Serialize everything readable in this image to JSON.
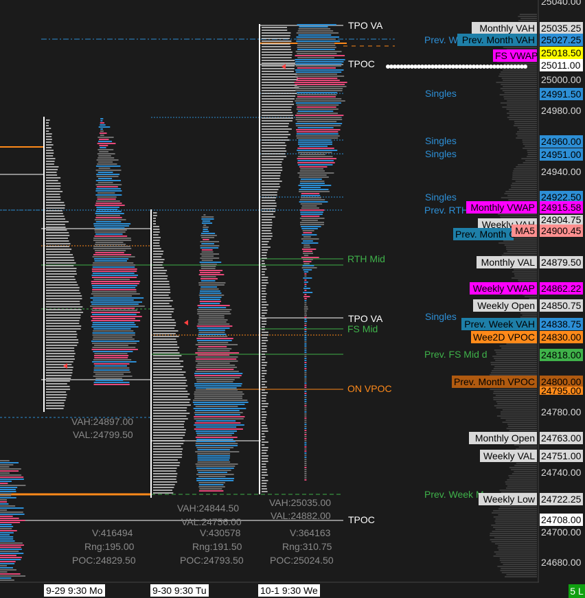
{
  "colors": {
    "bg": "#1b1b1b",
    "axis_bg": "#1b1b1b",
    "grid_line": "#e0e0e0",
    "blue": "#2d8fd6",
    "pink": "#e8497a",
    "gray_profile": "#6e6e6e",
    "orange": "#ff8a1a",
    "green": "#3fb24a",
    "white": "#ffffff",
    "magenta": "#ff00ff",
    "yellow": "#ffff00",
    "salmon": "#ff8f8f",
    "brown": "#b05a10",
    "teal": "#1e7fa8"
  },
  "price_axis": {
    "ticks": [
      "25040.00",
      "25000.00",
      "24980.00",
      "24940.00",
      "24780.00",
      "24740.00",
      "24700.00",
      "24680.00"
    ],
    "boxes": [
      {
        "text": "25035.25",
        "bg": "#d9d9d9",
        "fg": "#000000"
      },
      {
        "text": "25027.25",
        "bg": "#2d8fd6",
        "fg": "#000000"
      },
      {
        "text": "25018.50",
        "bg": "#ffff00",
        "fg": "#000000"
      },
      {
        "text": "25011.00",
        "bg": "#ffffff",
        "fg": "#000000"
      },
      {
        "text": "24991.50",
        "bg": "#2d8fd6",
        "fg": "#000000"
      },
      {
        "text": "24960.00",
        "bg": "#2d8fd6",
        "fg": "#000000"
      },
      {
        "text": "24951.00",
        "bg": "#2d8fd6",
        "fg": "#000000"
      },
      {
        "text": "24922.50",
        "bg": "#2d8fd6",
        "fg": "#000000"
      },
      {
        "text": "24915.58",
        "bg": "#ff00ff",
        "fg": "#000000"
      },
      {
        "text": "24904.75",
        "bg": "#d9d9d9",
        "fg": "#000000"
      },
      {
        "text": "24900.45",
        "bg": "#ff8f8f",
        "fg": "#000000"
      },
      {
        "text": "24879.50",
        "bg": "#d9d9d9",
        "fg": "#000000"
      },
      {
        "text": "24862.22",
        "bg": "#ff00ff",
        "fg": "#000000"
      },
      {
        "text": "24850.75",
        "bg": "#d9d9d9",
        "fg": "#000000"
      },
      {
        "text": "24838.75",
        "bg": "#2d8fd6",
        "fg": "#000000"
      },
      {
        "text": "24830.00",
        "bg": "#ff8a1a",
        "fg": "#000000"
      },
      {
        "text": "24818.00",
        "bg": "#3fb24a",
        "fg": "#000000"
      },
      {
        "text": "24800.00",
        "bg": "#b05a10",
        "fg": "#000000"
      },
      {
        "text": "24795.00",
        "bg": "#ff8a1a",
        "fg": "#000000"
      },
      {
        "text": "24763.00",
        "bg": "#d9d9d9",
        "fg": "#000000"
      },
      {
        "text": "24751.00",
        "bg": "#d9d9d9",
        "fg": "#000000"
      },
      {
        "text": "24722.25",
        "bg": "#d9d9d9",
        "fg": "#000000"
      },
      {
        "text": "24708.00",
        "bg": "#ffffff",
        "fg": "#000000"
      }
    ]
  },
  "right_tags": [
    {
      "text": "Monthly VAH",
      "bg": "#d9d9d9",
      "fg": "#000000"
    },
    {
      "text": "Prev. Month VAH",
      "bg": "#1e7fa8",
      "fg": "#000000"
    },
    {
      "text": "FS VWAP",
      "bg": "#ff00ff",
      "fg": "#000000"
    },
    {
      "text": "Monthly VWAP",
      "bg": "#ff00ff",
      "fg": "#000000"
    },
    {
      "text": "Weekly VAH",
      "bg": "#d9d9d9",
      "fg": "#000000"
    },
    {
      "text": "Prev. Month C",
      "bg": "#1e7fa8",
      "fg": "#000000"
    },
    {
      "text": "MA5",
      "bg": "#ff8f8f",
      "fg": "#000000"
    },
    {
      "text": "Monthly VAL",
      "bg": "#d9d9d9",
      "fg": "#000000"
    },
    {
      "text": "Weekly VWAP",
      "bg": "#ff00ff",
      "fg": "#000000"
    },
    {
      "text": "Weekly Open",
      "bg": "#d9d9d9",
      "fg": "#000000"
    },
    {
      "text": "Prev. Week VAH",
      "bg": "#1e7fa8",
      "fg": "#000000"
    },
    {
      "text": "Wee2D VPOC",
      "bg": "#ff8a1a",
      "fg": "#000000"
    },
    {
      "text": "Prev. Month VPOC",
      "bg": "#b05a10",
      "fg": "#000000"
    },
    {
      "text": "Monthly Open",
      "bg": "#d9d9d9",
      "fg": "#000000"
    },
    {
      "text": "Weekly VAL",
      "bg": "#d9d9d9",
      "fg": "#000000"
    },
    {
      "text": "Weekly Low",
      "bg": "#d9d9d9",
      "fg": "#000000"
    }
  ],
  "plain_labels": [
    {
      "text": "Prev. W",
      "color": "#2d8fd6"
    },
    {
      "text": "Singles",
      "color": "#2d8fd6"
    },
    {
      "text": "Singles",
      "color": "#2d8fd6"
    },
    {
      "text": "Singles",
      "color": "#2d8fd6"
    },
    {
      "text": "Singles",
      "color": "#2d8fd6"
    },
    {
      "text": "Prev. RTH",
      "color": "#2d8fd6"
    },
    {
      "text": "Singles",
      "color": "#2d8fd6"
    },
    {
      "text": "Prev. FS Mid d",
      "color": "#3fb24a"
    },
    {
      "text": "Prev. Week M",
      "color": "#3fb24a"
    }
  ],
  "profile_labels": [
    {
      "text": "TPO VA",
      "color": "#ffffff"
    },
    {
      "text": "TPOC",
      "color": "#ffffff"
    },
    {
      "text": "RTH Mid",
      "color": "#3fb24a"
    },
    {
      "text": "TPO VA",
      "color": "#ffffff"
    },
    {
      "text": "FS Mid",
      "color": "#3fb24a"
    },
    {
      "text": "ON VPOC",
      "color": "#ff8a1a"
    },
    {
      "text": "TPOC",
      "color": "#ffffff"
    }
  ],
  "sessions": [
    {
      "vah": "VAH:24897.00",
      "val": "VAL:24799.50",
      "v": "V:416494",
      "rng": "Rng:195.00",
      "poc": "POC:24829.50",
      "date": "9-29  9:30 Mo"
    },
    {
      "vah": "VAH:24844.50",
      "val": "VAL:24756.00",
      "v": "V:430578",
      "rng": "Rng:191.50",
      "poc": "POC:24793.50",
      "date": "9-30  9:30 Tu"
    },
    {
      "vah": "VAH:25035.00",
      "val": "VAL:24882.00",
      "v": "V:364163",
      "rng": "Rng:310.75",
      "poc": "POC:25024.50",
      "date": "10-1  9:30 We"
    }
  ],
  "status_badge": "5 L"
}
